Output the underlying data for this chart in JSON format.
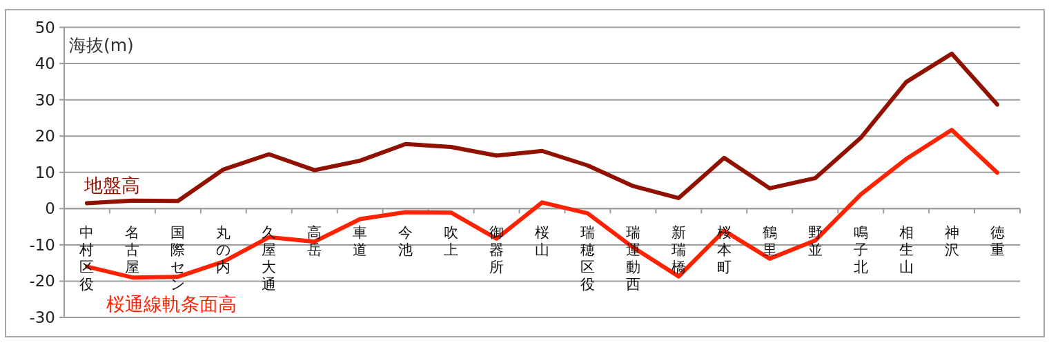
{
  "chart_data": {
    "type": "line",
    "ylabel": "海抜(m)",
    "categories": [
      "中村区役",
      "名古屋",
      "国際セン",
      "丸の内",
      "久屋大通",
      "高岳",
      "車道",
      "今池",
      "吹上",
      "御器所",
      "桜山",
      "瑞穂区役",
      "瑞運動西",
      "新瑞橋",
      "桜本町",
      "鶴里",
      "野並",
      "鳴子北",
      "相生山",
      "神沢",
      "徳重"
    ],
    "ylim": [
      -30,
      50
    ],
    "yticks": [
      -30,
      -20,
      -10,
      0,
      10,
      20,
      30,
      40,
      50
    ],
    "grid": "y",
    "series": [
      {
        "name": "地盤高",
        "color": "#901100",
        "values": [
          1.5,
          2.2,
          2.1,
          10.8,
          15.0,
          10.6,
          13.2,
          17.8,
          17.0,
          14.6,
          15.9,
          11.9,
          6.2,
          2.9,
          14.0,
          5.6,
          8.4,
          19.5,
          34.9,
          42.7,
          28.7
        ]
      },
      {
        "name": "桜通線軌条面高",
        "color": "#ff2200",
        "values": [
          -16.0,
          -19.0,
          -18.8,
          -14.6,
          -7.9,
          -9.1,
          -2.9,
          -1.0,
          -1.1,
          -8.3,
          1.7,
          -1.3,
          -10.7,
          -18.7,
          -6.1,
          -13.8,
          -8.8,
          3.9,
          13.7,
          21.7,
          9.9
        ]
      }
    ]
  }
}
